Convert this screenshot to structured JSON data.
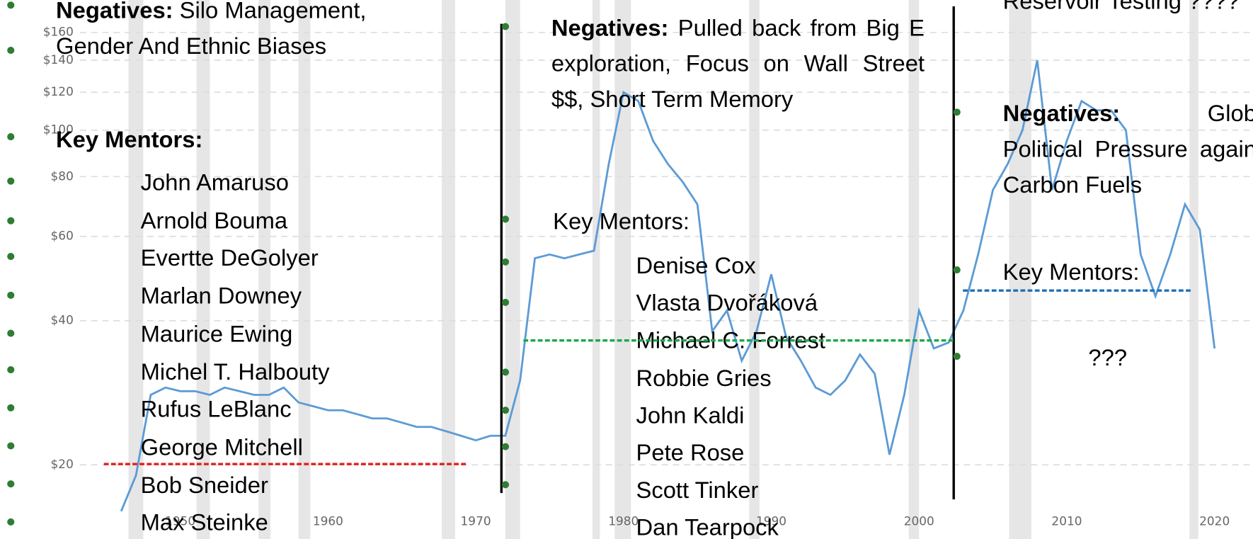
{
  "chart_data": {
    "type": "line",
    "x": [
      1946,
      1947,
      1948,
      1949,
      1950,
      1951,
      1952,
      1953,
      1954,
      1955,
      1956,
      1957,
      1958,
      1959,
      1960,
      1961,
      1962,
      1963,
      1964,
      1965,
      1966,
      1967,
      1968,
      1969,
      1970,
      1971,
      1972,
      1973,
      1974,
      1975,
      1976,
      1977,
      1978,
      1979,
      1980,
      1981,
      1982,
      1983,
      1984,
      1985,
      1986,
      1987,
      1988,
      1989,
      1990,
      1991,
      1992,
      1993,
      1994,
      1995,
      1996,
      1997,
      1998,
      1999,
      2000,
      2001,
      2002,
      2003,
      2004,
      2005,
      2006,
      2007,
      2008,
      2009,
      2010,
      2011,
      2012,
      2013,
      2014,
      2015,
      2016,
      2017,
      2018,
      2019,
      2020
    ],
    "values": [
      16,
      19,
      28,
      29,
      28.5,
      28.5,
      28,
      29,
      28.5,
      28,
      28,
      29,
      27,
      26.5,
      26,
      26,
      25.5,
      25,
      25,
      24.5,
      24,
      24,
      23.5,
      23,
      22.5,
      23,
      23,
      30,
      54,
      55,
      54,
      55,
      56,
      85,
      120,
      115,
      95,
      85,
      78,
      70,
      38,
      42,
      33,
      38,
      50,
      37,
      33,
      29,
      28,
      30,
      34,
      31,
      21,
      28,
      42,
      35,
      36,
      42,
      55,
      75,
      85,
      100,
      140,
      75,
      95,
      115,
      110,
      110,
      100,
      55,
      45,
      55,
      70,
      62,
      35
    ],
    "color": "#5b9bd5",
    "log_scale": true,
    "grid": true,
    "xlim": [
      1937.8,
      2022.6
    ],
    "ylim": [
      14,
      187
    ],
    "yticks": [
      {
        "value": 20,
        "label": "$20"
      },
      {
        "value": 40,
        "label": "$40"
      },
      {
        "value": 60,
        "label": "$60"
      },
      {
        "value": 80,
        "label": "$80"
      },
      {
        "value": 100,
        "label": "$100"
      },
      {
        "value": 120,
        "label": "$120"
      },
      {
        "value": 140,
        "label": "$140"
      },
      {
        "value": 160,
        "label": "$160"
      }
    ],
    "xticks": [
      1950,
      1960,
      1970,
      1980,
      1990,
      2000,
      2010,
      2020
    ],
    "shaded_periods": [
      [
        1946.5,
        1947.5
      ],
      [
        1951.1,
        1952
      ],
      [
        1955.3,
        1956.1
      ],
      [
        1958,
        1958.8
      ],
      [
        1967.7,
        1968.6
      ],
      [
        1972,
        1973
      ],
      [
        1977.9,
        1978.4
      ],
      [
        1979.4,
        1980.5
      ],
      [
        1988.5,
        1989.2
      ],
      [
        1999.3,
        2000
      ],
      [
        2006.1,
        2007.6
      ],
      [
        2018.3,
        2018.9
      ]
    ]
  },
  "columns": [
    {
      "negatives_label": "Negatives:",
      "negatives_text": "Silo Management, Gender And Ethnic Biases",
      "mentors_label": "Key Mentors:",
      "mentors": [
        "John Amaruso",
        "Arnold Bouma",
        "Evertte DeGolyer",
        "Marlan Downey",
        "Maurice Ewing",
        "Michel T. Halbouty",
        "Rufus LeBlanc",
        "George Mitchell",
        "Bob Sneider",
        "Max Steinke"
      ]
    },
    {
      "negatives_label": "Negatives:",
      "negatives_text": "Pulled back from Big E exploration, Focus on Wall Street $$, Short Term Memory",
      "mentors_label": "Key Mentors:",
      "mentors": [
        "Denise Cox",
        "Vlasta Dvořáková",
        "Michael C. Forrest",
        "Robbie Gries",
        "John Kaldi",
        "Pete Rose",
        "Scott Tinker",
        "Dan Tearpock"
      ]
    },
    {
      "intro": "Reservoir Testing ????",
      "negatives_label": "Negatives:",
      "negatives_text": "Global Political Pressure against Carbon Fuels",
      "mentors_label": "Key Mentors:",
      "mentors": [
        "???"
      ]
    }
  ]
}
